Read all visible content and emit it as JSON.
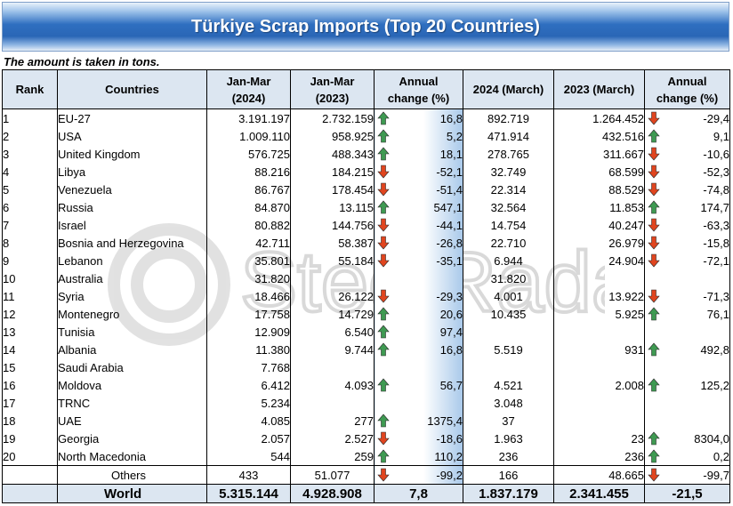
{
  "title": "Türkiye Scrap Imports (Top 20 Countries)",
  "unit_note": "The amount is taken in tons.",
  "watermark": "SteelRadar",
  "colors": {
    "up": "#3f9a52",
    "down": "#e0451f",
    "header_bg": "#dce6f1",
    "title_bg": "#2f6fc0"
  },
  "headers": {
    "rank": "Rank",
    "countries": "Countries",
    "jan_mar_2024_line1": "Jan-Mar",
    "jan_mar_2024_line2": "(2024)",
    "jan_mar_2023_line1": "Jan-Mar",
    "jan_mar_2023_line2": "(2023)",
    "annual_change_line1": "Annual",
    "annual_change_line2": "change (%)",
    "march_2024": "2024 (March)",
    "march_2023": "2023 (March)",
    "annual_change2_line1": "Annual",
    "annual_change2_line2": "change (%)"
  },
  "rows": [
    {
      "rank": "1",
      "country": "EU-27",
      "jm24": "3.191.197",
      "jm23": "2.732.159",
      "chg1": "16,8",
      "chg1_dir": "up",
      "m24": "892.719",
      "m23": "1.264.452",
      "chg2": "-29,4",
      "chg2_dir": "down"
    },
    {
      "rank": "2",
      "country": "USA",
      "jm24": "1.009.110",
      "jm23": "958.925",
      "chg1": "5,2",
      "chg1_dir": "up",
      "m24": "471.914",
      "m23": "432.516",
      "chg2": "9,1",
      "chg2_dir": "up"
    },
    {
      "rank": "3",
      "country": "United Kingdom",
      "jm24": "576.725",
      "jm23": "488.343",
      "chg1": "18,1",
      "chg1_dir": "up",
      "m24": "278.765",
      "m23": "311.667",
      "chg2": "-10,6",
      "chg2_dir": "down"
    },
    {
      "rank": "4",
      "country": "Libya",
      "jm24": "88.216",
      "jm23": "184.215",
      "chg1": "-52,1",
      "chg1_dir": "down",
      "m24": "32.749",
      "m23": "68.599",
      "chg2": "-52,3",
      "chg2_dir": "down"
    },
    {
      "rank": "5",
      "country": "Venezuela",
      "jm24": "86.767",
      "jm23": "178.454",
      "chg1": "-51,4",
      "chg1_dir": "down",
      "m24": "22.314",
      "m23": "88.529",
      "chg2": "-74,8",
      "chg2_dir": "down"
    },
    {
      "rank": "6",
      "country": "Russia",
      "jm24": "84.870",
      "jm23": "13.115",
      "chg1": "547,1",
      "chg1_dir": "up",
      "m24": "32.564",
      "m23": "11.853",
      "chg2": "174,7",
      "chg2_dir": "up"
    },
    {
      "rank": "7",
      "country": "Israel",
      "jm24": "80.882",
      "jm23": "144.756",
      "chg1": "-44,1",
      "chg1_dir": "down",
      "m24": "14.754",
      "m23": "40.247",
      "chg2": "-63,3",
      "chg2_dir": "down"
    },
    {
      "rank": "8",
      "country": "Bosnia and Herzegovina",
      "jm24": "42.711",
      "jm23": "58.387",
      "chg1": "-26,8",
      "chg1_dir": "down",
      "m24": "22.710",
      "m23": "26.979",
      "chg2": "-15,8",
      "chg2_dir": "down"
    },
    {
      "rank": "9",
      "country": "Lebanon",
      "jm24": "35.801",
      "jm23": "55.184",
      "chg1": "-35,1",
      "chg1_dir": "down",
      "m24": "6.944",
      "m23": "24.904",
      "chg2": "-72,1",
      "chg2_dir": "down"
    },
    {
      "rank": "10",
      "country": "Australia",
      "jm24": "31.820",
      "jm23": "",
      "chg1": "",
      "chg1_dir": "",
      "m24": "31.820",
      "m23": "",
      "chg2": "",
      "chg2_dir": ""
    },
    {
      "rank": "11",
      "country": "Syria",
      "jm24": "18.466",
      "jm23": "26.122",
      "chg1": "-29,3",
      "chg1_dir": "down",
      "m24": "4.001",
      "m23": "13.922",
      "chg2": "-71,3",
      "chg2_dir": "down"
    },
    {
      "rank": "12",
      "country": "Montenegro",
      "jm24": "17.758",
      "jm23": "14.729",
      "chg1": "20,6",
      "chg1_dir": "up",
      "m24": "10.435",
      "m23": "5.925",
      "chg2": "76,1",
      "chg2_dir": "up"
    },
    {
      "rank": "13",
      "country": "Tunisia",
      "jm24": "12.909",
      "jm23": "6.540",
      "chg1": "97,4",
      "chg1_dir": "up",
      "m24": "",
      "m23": "",
      "chg2": "",
      "chg2_dir": ""
    },
    {
      "rank": "14",
      "country": "Albania",
      "jm24": "11.380",
      "jm23": "9.744",
      "chg1": "16,8",
      "chg1_dir": "up",
      "m24": "5.519",
      "m23": "931",
      "chg2": "492,8",
      "chg2_dir": "up"
    },
    {
      "rank": "15",
      "country": "Saudi Arabia",
      "jm24": "7.768",
      "jm23": "",
      "chg1": "",
      "chg1_dir": "",
      "m24": "",
      "m23": "",
      "chg2": "",
      "chg2_dir": ""
    },
    {
      "rank": "16",
      "country": "Moldova",
      "jm24": "6.412",
      "jm23": "4.093",
      "chg1": "56,7",
      "chg1_dir": "up",
      "m24": "4.521",
      "m23": "2.008",
      "chg2": "125,2",
      "chg2_dir": "up"
    },
    {
      "rank": "17",
      "country": "TRNC",
      "jm24": "5.234",
      "jm23": "",
      "chg1": "",
      "chg1_dir": "",
      "m24": "3.048",
      "m23": "",
      "chg2": "",
      "chg2_dir": ""
    },
    {
      "rank": "18",
      "country": "UAE",
      "jm24": "4.085",
      "jm23": "277",
      "chg1": "1375,4",
      "chg1_dir": "up",
      "m24": "37",
      "m23": "",
      "chg2": "",
      "chg2_dir": ""
    },
    {
      "rank": "19",
      "country": "Georgia",
      "jm24": "2.057",
      "jm23": "2.527",
      "chg1": "-18,6",
      "chg1_dir": "down",
      "m24": "1.963",
      "m23": "23",
      "chg2": "8304,0",
      "chg2_dir": "up"
    },
    {
      "rank": "20",
      "country": "North Macedonia",
      "jm24": "544",
      "jm23": "259",
      "chg1": "110,2",
      "chg1_dir": "up",
      "m24": "236",
      "m23": "236",
      "chg2": "0,2",
      "chg2_dir": "up"
    }
  ],
  "others": {
    "label": "Others",
    "jm24": "433",
    "jm23": "51.077",
    "chg1": "-99,2",
    "chg1_dir": "down",
    "m24": "166",
    "m23": "48.665",
    "chg2": "-99,7",
    "chg2_dir": "down"
  },
  "world": {
    "label": "World",
    "jm24": "5.315.144",
    "jm23": "4.928.908",
    "chg1": "7,8",
    "m24": "1.837.179",
    "m23": "2.341.455",
    "chg2": "-21,5"
  }
}
